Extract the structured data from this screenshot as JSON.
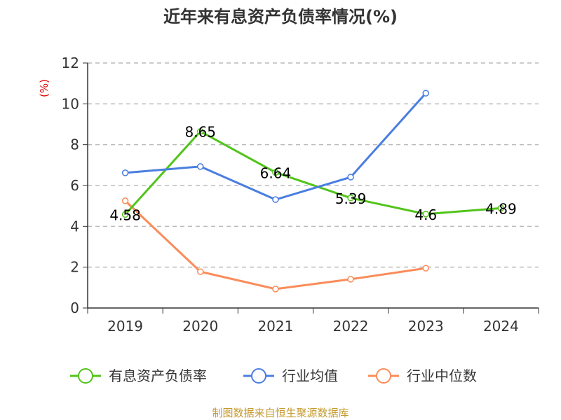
{
  "chart_data": {
    "type": "line",
    "title": "近年来有息资产负债率情况(%)",
    "ylabel": "(%)",
    "ylim": [
      0,
      12
    ],
    "yticks": [
      0,
      2,
      4,
      6,
      8,
      10,
      12
    ],
    "grid": true,
    "legend_placement": "bottom",
    "categories": [
      "2019",
      "2020",
      "2021",
      "2022",
      "2023",
      "2024"
    ],
    "series": [
      {
        "name": "有息资产负债率",
        "color": "#52c41a",
        "values": [
          4.58,
          8.65,
          6.64,
          5.39,
          4.6,
          4.89
        ],
        "labels": [
          "4.58",
          "8.65",
          "6.64",
          "5.39",
          "4.6",
          "4.89"
        ]
      },
      {
        "name": "行业均值",
        "color": "#4a7ee0",
        "values": [
          6.62,
          6.93,
          5.31,
          6.41,
          10.52,
          null
        ]
      },
      {
        "name": "行业中位数",
        "color": "#fa8c5a",
        "values": [
          5.25,
          1.78,
          0.93,
          1.41,
          1.95,
          null
        ]
      }
    ],
    "source": "制图数据来自恒生聚源数据库"
  }
}
